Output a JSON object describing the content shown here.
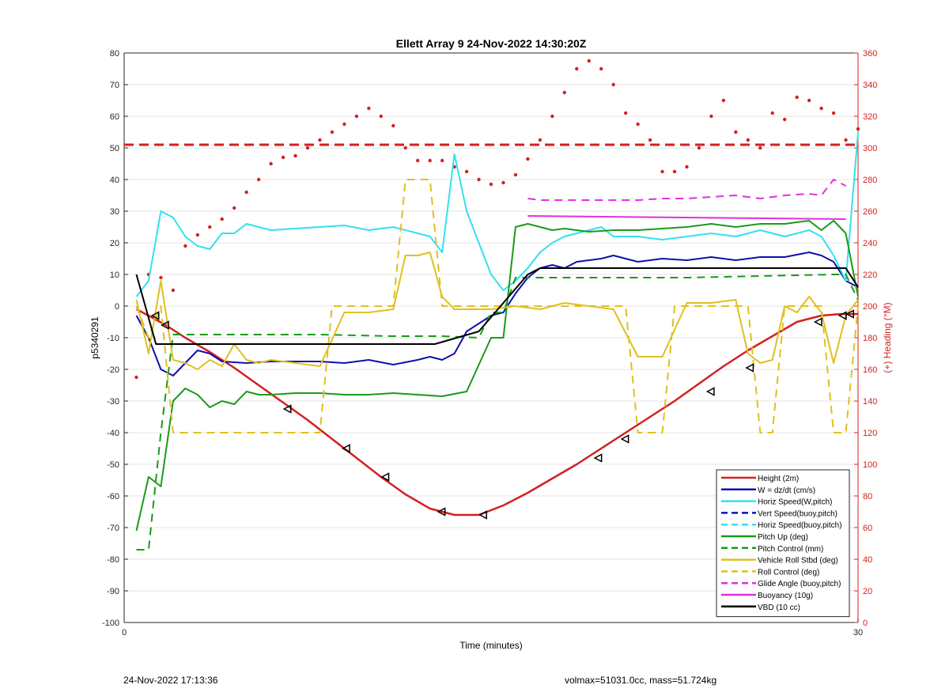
{
  "chart_data": {
    "type": "line",
    "title": "Ellett Array 9 24-Nov-2022 14:30:20Z",
    "xlabel": "Time (minutes)",
    "ylabel": "p5340291",
    "y2label": "(+) Heading (°M)",
    "xlim": [
      0,
      30
    ],
    "ylim": [
      -100,
      80
    ],
    "y2lim": [
      0,
      360
    ],
    "x_ticks": [
      0,
      30
    ],
    "y_ticks": [
      -100,
      -90,
      -80,
      -70,
      -60,
      -50,
      -40,
      -30,
      -20,
      -10,
      0,
      10,
      20,
      30,
      40,
      50,
      60,
      70,
      80
    ],
    "y2_ticks": [
      0,
      20,
      40,
      60,
      80,
      100,
      120,
      140,
      160,
      180,
      200,
      220,
      240,
      260,
      280,
      300,
      320,
      340,
      360
    ],
    "grid": "horizontal",
    "legend_position": "bottom-right",
    "series": [
      {
        "name": "Height (2m)",
        "color": "#d42020",
        "style": "solid",
        "width": 2.5,
        "x": [
          0.5,
          1.0,
          1.7,
          2.5,
          3.5,
          4.5,
          5.5,
          6.5,
          7.5,
          8.5,
          9.5,
          10.5,
          11.5,
          12.5,
          13.5,
          14.5,
          15.5,
          16.5,
          17.5,
          18.5,
          19.5,
          20.5,
          21.5,
          22.5,
          23.5,
          24.5,
          25.5,
          26.5,
          27.5,
          28.5,
          29.3,
          30.0
        ],
        "y": [
          -1,
          -3,
          -6,
          -10,
          -14.5,
          -19.5,
          -25,
          -30.5,
          -36,
          -42,
          -48,
          -54,
          -59.5,
          -64,
          -66,
          -66,
          -63,
          -59,
          -54.5,
          -50,
          -45,
          -40,
          -35,
          -30,
          -24.5,
          -19,
          -14,
          -9.5,
          -5,
          -3,
          -2.5,
          -2.5
        ]
      },
      {
        "name": "W = dz/dt (cm/s)",
        "color": "#1010b0",
        "style": "solid",
        "width": 2,
        "x": [
          0.5,
          1.0,
          1.5,
          2.0,
          2.5,
          3.0,
          3.5,
          4.0,
          5.0,
          6.0,
          7.0,
          8.0,
          9.0,
          10.0,
          11.0,
          12.0,
          12.5,
          13.0,
          13.5,
          14.0,
          15.0,
          15.5,
          16.0,
          16.5,
          17.0,
          17.5,
          18.0,
          18.5,
          19.0,
          19.5,
          20.0,
          21.0,
          22.0,
          23.0,
          24.0,
          25.0,
          26.0,
          27.0,
          28.0,
          28.5,
          29.0,
          29.5,
          30.0
        ],
        "y": [
          -3,
          -10,
          -20,
          -22,
          -18,
          -14,
          -15,
          -17.5,
          -18,
          -17.5,
          -17.5,
          -17.5,
          -18,
          -17,
          -18.5,
          -17,
          -16,
          -17,
          -15,
          -8,
          -3,
          -2,
          4,
          9,
          12,
          13,
          12,
          14,
          14.5,
          15,
          16,
          14,
          15,
          14.5,
          15.5,
          14.5,
          15.5,
          15.5,
          17,
          16,
          14,
          8,
          6
        ]
      },
      {
        "name": "Horiz Speed(W,pitch)",
        "color": "#33e0f0",
        "style": "solid",
        "width": 2,
        "x": [
          0.5,
          1.0,
          1.5,
          2.0,
          2.5,
          3.0,
          3.5,
          4.0,
          4.5,
          5.0,
          5.5,
          6.0,
          7.0,
          8.0,
          9.0,
          10.0,
          11.0,
          12.0,
          12.5,
          13.0,
          13.5,
          14.0,
          14.5,
          15.0,
          15.5,
          16.0,
          16.5,
          17.0,
          17.5,
          18.0,
          18.5,
          19.0,
          19.5,
          20.0,
          21.0,
          22.0,
          23.0,
          24.0,
          25.0,
          26.0,
          27.0,
          28.0,
          28.5,
          29.0,
          29.5,
          30.0
        ],
        "y": [
          3,
          8,
          30,
          28,
          22,
          19,
          18,
          23,
          23,
          26,
          25,
          24,
          24.5,
          25,
          25.5,
          24,
          25,
          23,
          22,
          17,
          48,
          30,
          20,
          10,
          5,
          8,
          12,
          17,
          20,
          22,
          23,
          24,
          25,
          22,
          22,
          21,
          22,
          23,
          22,
          24,
          22,
          24,
          22,
          16,
          8,
          55
        ]
      },
      {
        "name": "Vert Speed(buoy,pitch)",
        "color": "#1010b0",
        "style": "dashed",
        "width": 2,
        "x": [],
        "y": []
      },
      {
        "name": "Horiz Speed(buoy,pitch)",
        "color": "#33e0f0",
        "style": "dashed",
        "width": 2,
        "x": [],
        "y": []
      },
      {
        "name": "Pitch Up (deg)",
        "color": "#1a9a1a",
        "style": "solid",
        "width": 2,
        "x": [
          0.5,
          1.0,
          1.5,
          2.0,
          2.5,
          3.0,
          3.5,
          4.0,
          4.5,
          5.0,
          5.5,
          6.0,
          7.0,
          8.0,
          9.0,
          10.0,
          11.0,
          12.0,
          13.0,
          14.0,
          15.0,
          15.5,
          16.0,
          16.5,
          17.0,
          17.5,
          18.0,
          19.0,
          20.0,
          21.0,
          22.0,
          23.0,
          24.0,
          25.0,
          26.0,
          27.0,
          28.0,
          28.5,
          29.0,
          29.5,
          30.0
        ],
        "y": [
          -71,
          -54,
          -57,
          -30,
          -26,
          -28,
          -32,
          -30,
          -31,
          -27,
          -28,
          -28,
          -27.5,
          -27.5,
          -28,
          -28,
          -27.5,
          -28,
          -28.5,
          -27,
          -10,
          -10,
          25,
          26,
          25,
          24,
          24.5,
          23.5,
          24,
          24,
          24.5,
          25,
          26,
          25,
          26,
          26,
          27,
          24,
          27,
          23,
          3
        ]
      },
      {
        "name": "Pitch Control (mm)",
        "color": "#1a9a1a",
        "style": "dashed",
        "width": 2,
        "x": [
          0.5,
          1.0,
          1.5,
          2.0,
          2.5,
          5.0,
          8.0,
          11.0,
          13.0,
          14.5,
          15.0,
          15.5,
          16.0,
          20.0,
          23.0,
          26.0,
          29.0,
          29.5,
          30.0
        ],
        "y": [
          -77,
          -77,
          -40,
          -9,
          -9,
          -9,
          -9,
          -9.5,
          -9.5,
          -10,
          -2,
          -2,
          9,
          9,
          9,
          9.5,
          10,
          10,
          2
        ]
      },
      {
        "name": "Vehicle Roll Stbd (deg)",
        "color": "#e0c020",
        "style": "solid",
        "width": 2,
        "x": [
          0.5,
          1.0,
          1.5,
          2.0,
          2.5,
          3.0,
          3.5,
          4.0,
          4.5,
          5.0,
          5.5,
          6.0,
          7.0,
          8.0,
          9.0,
          10.0,
          11.0,
          11.5,
          12.0,
          12.5,
          13.0,
          13.5,
          14.0,
          14.5,
          15.0,
          16.0,
          17.0,
          18.0,
          19.0,
          20.0,
          21.0,
          22.0,
          23.0,
          24.0,
          25.0,
          25.5,
          26.0,
          26.5,
          27.0,
          27.5,
          28.0,
          28.5,
          29.0,
          29.5,
          30.0
        ],
        "y": [
          2,
          -15,
          8,
          -17,
          -18,
          -20,
          -17,
          -19,
          -12,
          -17,
          -18,
          -17,
          -18,
          -19,
          -2,
          -2,
          -1,
          16,
          16,
          17,
          3,
          -1,
          -1,
          -1,
          -1,
          0,
          -1,
          1,
          0,
          -1,
          -16,
          -16,
          1,
          1,
          2,
          -15,
          -18,
          -17,
          0,
          -2,
          3,
          -2,
          -18,
          -3,
          2
        ]
      },
      {
        "name": "Roll Control (deg)",
        "color": "#e0c020",
        "style": "dashed",
        "width": 2,
        "x": [
          0.5,
          1.0,
          1.5,
          2.0,
          2.5,
          3.0,
          5.0,
          7.0,
          7.5,
          8.0,
          8.5,
          9.0,
          10.0,
          11.0,
          11.5,
          12.0,
          12.5,
          13.0,
          13.5,
          15.0,
          16.0,
          17.0,
          18.0,
          19.0,
          20.0,
          20.5,
          21.0,
          21.5,
          22.0,
          22.5,
          23.0,
          24.0,
          25.0,
          25.5,
          26.0,
          26.5,
          27.0,
          27.5,
          28.0,
          28.5,
          29.0,
          29.5,
          30.0
        ],
        "y": [
          0,
          -10,
          0,
          -40,
          -40,
          -40,
          -40,
          -40,
          -40,
          -40,
          0,
          0,
          0,
          0,
          40,
          40,
          40,
          0,
          0,
          0,
          0,
          0,
          0,
          0,
          0,
          0,
          -40,
          -40,
          -40,
          0,
          0,
          0,
          0,
          0,
          -40,
          -40,
          0,
          0,
          0,
          0,
          -40,
          -40,
          0
        ]
      },
      {
        "name": "Glide Angle (buoy,pitch)",
        "color": "#e030e0",
        "style": "dashed",
        "width": 2,
        "x": [
          16.5,
          17.0,
          18.0,
          19.0,
          20.0,
          21.0,
          22.0,
          23.0,
          24.0,
          25.0,
          26.0,
          27.0,
          28.0,
          28.5,
          29.0,
          29.5
        ],
        "y": [
          34,
          33.5,
          33.5,
          33.5,
          33.5,
          33.5,
          34,
          34,
          34.5,
          35,
          34,
          35,
          35.5,
          35,
          40,
          38
        ]
      },
      {
        "name": "Buoyancy (10g)",
        "color": "#e030e0",
        "style": "solid",
        "width": 2,
        "x": [
          16.5,
          29.5
        ],
        "y": [
          28.5,
          27.5
        ]
      },
      {
        "name": "VBD (10 cc)",
        "color": "#000000",
        "style": "solid",
        "width": 2,
        "x": [
          0.5,
          1.3,
          12.7,
          14.5,
          16.5,
          17.0,
          29.5,
          30.0
        ],
        "y": [
          10,
          -12,
          -12,
          -8,
          10,
          12,
          12,
          6
        ]
      }
    ],
    "heading_series": {
      "axis": "right",
      "color": "#d42020",
      "style": "dotted",
      "x": [
        0.5,
        1.0,
        1.5,
        2.0,
        2.5,
        3.0,
        3.5,
        4.0,
        4.5,
        5.0,
        5.5,
        6.0,
        6.5,
        7.0,
        7.5,
        8.0,
        8.5,
        9.0,
        9.5,
        10.0,
        10.5,
        11.0,
        11.5,
        12.0,
        12.5,
        13.0,
        13.5,
        14.0,
        14.5,
        15.0,
        15.5,
        16.0,
        16.5,
        17.0,
        17.5,
        18.0,
        18.5,
        19.0,
        19.5,
        20.0,
        20.5,
        21.0,
        21.5,
        22.0,
        22.5,
        23.0,
        23.5,
        24.0,
        24.5,
        25.0,
        25.5,
        26.0,
        26.5,
        27.0,
        27.5,
        28.0,
        28.5,
        29.0,
        29.5,
        30.0
      ],
      "y": [
        155,
        220,
        218,
        210,
        238,
        245,
        250,
        255,
        262,
        272,
        280,
        290,
        294,
        295,
        300,
        305,
        310,
        315,
        320,
        325,
        320,
        314,
        300,
        292,
        292,
        292,
        288,
        285,
        280,
        277,
        278,
        283,
        293,
        305,
        320,
        335,
        350,
        355,
        350,
        340,
        322,
        315,
        305,
        285,
        285,
        288,
        300,
        320,
        330,
        310,
        305,
        300,
        322,
        318,
        332,
        330,
        325,
        322,
        305,
        312
      ]
    },
    "heading_reference": {
      "axis": "right",
      "value": 302,
      "color": "#d42020",
      "style": "dashed"
    },
    "markers": {
      "series": "Height (2m)",
      "shape": "triangle-left",
      "x": [
        1.3,
        1.7,
        6.7,
        9.1,
        10.7,
        13.0,
        14.7,
        19.4,
        20.5,
        24.0,
        25.6,
        28.4,
        29.4,
        29.7
      ],
      "y": [
        -3,
        -6,
        -32.5,
        -45,
        -54,
        -65,
        -66,
        -48,
        -42,
        -27,
        -19.5,
        -5,
        -3,
        -2.5
      ]
    }
  },
  "footer": {
    "left": "24-Nov-2022 17:13:36",
    "right": "volmax=51031.0cc, mass=51.724kg"
  }
}
